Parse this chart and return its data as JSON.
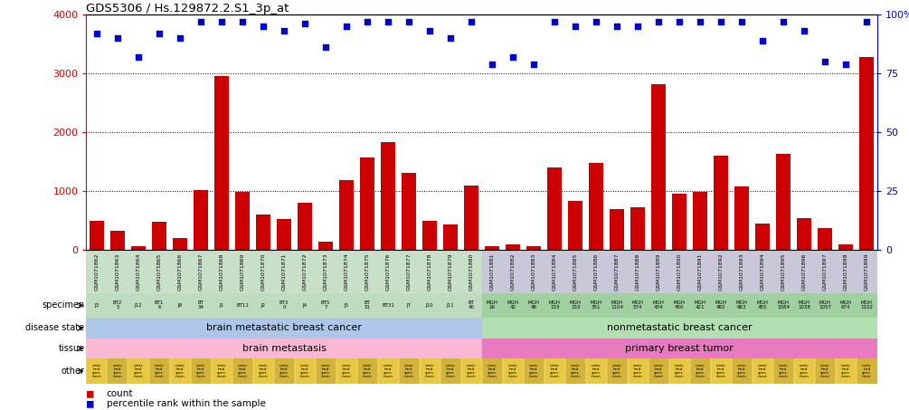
{
  "title": "GDS5306 / Hs.129872.2.S1_3p_at",
  "gsm_ids": [
    "GSM1071862",
    "GSM1071863",
    "GSM1071864",
    "GSM1071865",
    "GSM1071866",
    "GSM1071867",
    "GSM1071868",
    "GSM1071869",
    "GSM1071870",
    "GSM1071871",
    "GSM1071872",
    "GSM1071873",
    "GSM1071874",
    "GSM1071875",
    "GSM1071876",
    "GSM1071877",
    "GSM1071878",
    "GSM1071879",
    "GSM1071880",
    "GSM1071881",
    "GSM1071882",
    "GSM1071883",
    "GSM1071884",
    "GSM1071885",
    "GSM1071886",
    "GSM1071887",
    "GSM1071888",
    "GSM1071889",
    "GSM1071890",
    "GSM1071891",
    "GSM1071892",
    "GSM1071893",
    "GSM1071894",
    "GSM1071895",
    "GSM1071896",
    "GSM1071897",
    "GSM1071898",
    "GSM1071899"
  ],
  "counts": [
    500,
    330,
    60,
    480,
    210,
    1020,
    2950,
    990,
    600,
    530,
    810,
    140,
    1180,
    1570,
    1830,
    1310,
    490,
    440,
    1090,
    70,
    100,
    60,
    1410,
    840,
    1480,
    700,
    720,
    2820,
    960,
    990,
    1600,
    1080,
    450,
    1630,
    540,
    380,
    90,
    3280
  ],
  "percentiles": [
    92,
    90,
    82,
    92,
    90,
    97,
    97,
    97,
    95,
    93,
    96,
    86,
    95,
    97,
    97,
    97,
    93,
    90,
    97,
    79,
    82,
    79,
    97,
    95,
    97,
    95,
    95,
    97,
    97,
    97,
    97,
    97,
    89,
    97,
    93,
    80,
    79,
    97
  ],
  "specimens": [
    "J3",
    "BT2\n5",
    "J12",
    "BT1\n6",
    "J8",
    "BT\n34",
    "J1",
    "BT11",
    "J2",
    "BT3\n0",
    "J4",
    "BT5\n7",
    "J5",
    "BT\n51",
    "BT31",
    "J7",
    "J10",
    "J11",
    "BT\n40",
    "MGH\n16",
    "MGH\n42",
    "MGH\n46",
    "MGH\n133",
    "MGH\n153",
    "MGH\n351",
    "MGH\n1104",
    "MGH\n574",
    "MGH\n434",
    "MGH\n450",
    "MGH\n421",
    "MGH\n482",
    "MGH\n963",
    "MGH\n455",
    "MGH\n1084",
    "MGH\n1038",
    "MGH\n1057",
    "MGH\n674",
    "MGH\n1102"
  ],
  "n_brain": 19,
  "n_nonmeta": 19,
  "ylim_left": [
    0,
    4000
  ],
  "ylim_right": [
    0,
    100
  ],
  "yticks_left": [
    0,
    1000,
    2000,
    3000,
    4000
  ],
  "yticks_right": [
    0,
    25,
    50,
    75,
    100
  ],
  "bar_color": "#cc0000",
  "dot_color": "#0000cc",
  "disease_state_brain_color": "#aec6e8",
  "disease_state_nonmeta_color": "#b2dfb2",
  "tissue_brain_color": "#f9b8d4",
  "tissue_nonmeta_color": "#e87bbf",
  "other_color_brain": "#e8c840",
  "other_color_nonmeta": "#e8c840",
  "gsm_bg_brain": "#c8dfc8",
  "gsm_bg_nonmeta": "#c8c8d8",
  "spec_bg_brain": "#c0dcc0",
  "spec_bg_nonmeta": "#a0d0a0",
  "disease_state_brain_label": "brain metastatic breast cancer",
  "disease_state_nonmeta_label": "nonmetastatic breast cancer",
  "tissue_brain_label": "brain metastasis",
  "tissue_nonmeta_label": "primary breast tumor",
  "other_line1": "matc",
  "other_line2": "hed",
  "other_line3": "spec",
  "other_line4": "imen"
}
